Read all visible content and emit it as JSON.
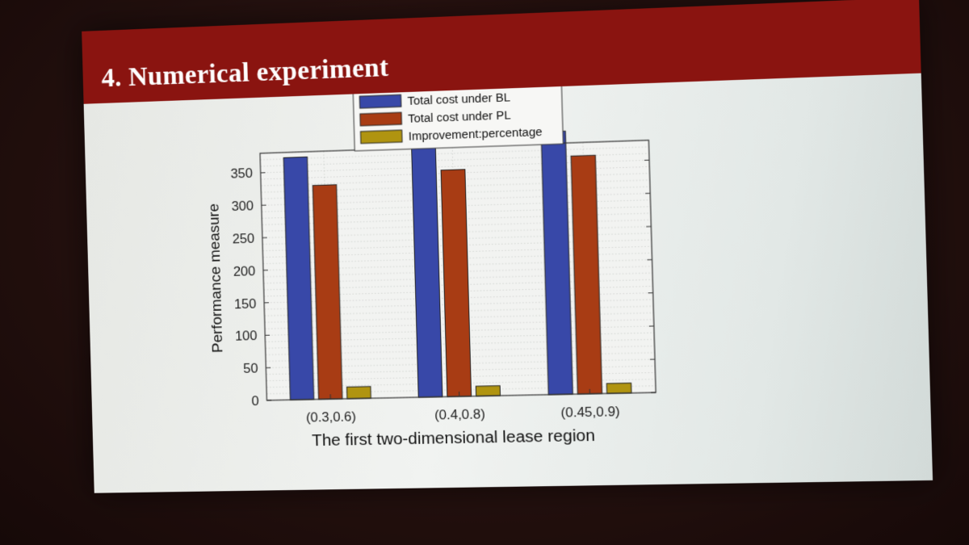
{
  "slide": {
    "title": "4. Numerical experiment"
  },
  "colors": {
    "title_bar": "#8a1410",
    "series": [
      "#3848a8",
      "#a83c14",
      "#b09410"
    ]
  },
  "chart_data": {
    "type": "bar",
    "categories": [
      "(0.3,0.6)",
      "(0.4,0.8)",
      "(0.45,0.9)"
    ],
    "series": [
      {
        "name": "Total cost under BL",
        "values": [
          372,
          386,
          398
        ]
      },
      {
        "name": "Total cost under PL",
        "values": [
          328,
          345,
          360
        ]
      },
      {
        "name": "Improvement:percentage",
        "values": [
          18,
          15,
          15
        ]
      }
    ],
    "title": "",
    "xlabel": "The first two-dimensional lease region",
    "ylabel": "Performance measure",
    "ylim": [
      0,
      380
    ],
    "yticks": [
      0,
      50,
      100,
      150,
      200,
      250,
      300,
      350
    ],
    "grid": true,
    "legend_position": "top"
  }
}
